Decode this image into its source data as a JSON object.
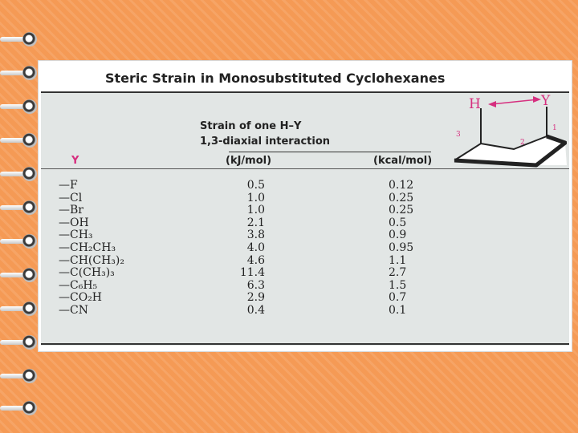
{
  "table": {
    "title": "Steric Strain in Monosubstituted Cyclohexanes",
    "col_substituent": "Y",
    "strain_line1": "Strain of one H–Y",
    "strain_line2": "1,3-diaxial interaction",
    "col_kj": "(kJ/mol)",
    "col_kcal": "(kcal/mol)",
    "rows": [
      {
        "substituent": "—F",
        "kj": "0.5",
        "kcal": "0.12"
      },
      {
        "substituent": "—Cl",
        "kj": "1.0",
        "kcal": "0.25"
      },
      {
        "substituent": "—Br",
        "kj": "1.0",
        "kcal": "0.25"
      },
      {
        "substituent": "—OH",
        "kj": "2.1",
        "kcal": "0.5"
      },
      {
        "substituent": "—CH₃",
        "kj": "3.8",
        "kcal": "0.9"
      },
      {
        "substituent": "—CH₂CH₃",
        "kj": "4.0",
        "kcal": "0.95"
      },
      {
        "substituent": "—CH(CH₃)₂",
        "kj": "4.6",
        "kcal": "1.1"
      },
      {
        "substituent": "—C(CH₃)₃",
        "kj": "11.4",
        "kcal": "2.7"
      },
      {
        "substituent": "—C₆H₅",
        "kj": "6.3",
        "kcal": "1.5"
      },
      {
        "substituent": "—CO₂H",
        "kj": "2.9",
        "kcal": "0.7"
      },
      {
        "substituent": "—CN",
        "kj": "0.4",
        "kcal": "0.1"
      }
    ]
  },
  "diagram": {
    "label_h": "H",
    "label_y": "Y",
    "pos_1": "1",
    "pos_2": "2",
    "pos_3": "3"
  },
  "colors": {
    "background": "#f59a55",
    "accent": "#d62f7f",
    "text": "#222222",
    "table_bg": "#e2e6e5"
  }
}
